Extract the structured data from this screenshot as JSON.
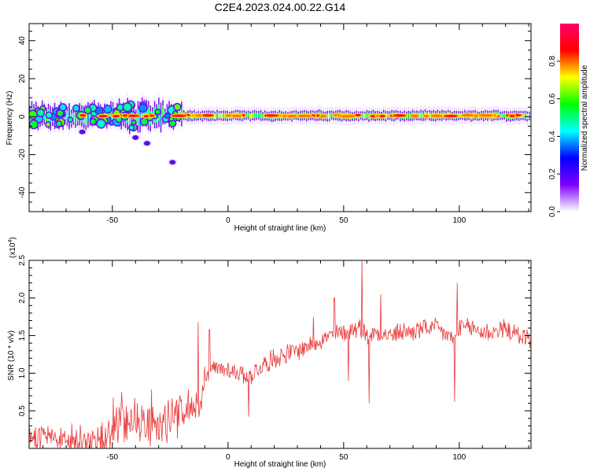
{
  "title": "C2E4.2023.024.00.22.G14",
  "colors": {
    "snr_line": "#e83a3a",
    "axis": "#000000"
  },
  "chart_data": [
    {
      "type": "heatmap",
      "xlabel": "Height of straight line (km)",
      "ylabel": "Frequency (Hz)",
      "xlim": [
        -86,
        131
      ],
      "ylim": [
        -50,
        49
      ],
      "xticks": [
        -50,
        0,
        50,
        100
      ],
      "yticks": [
        -40,
        -20,
        0,
        20,
        40
      ],
      "xtick_labels": [
        "-50",
        "0",
        "50",
        "100"
      ],
      "ytick_labels": [
        "-40",
        "-20",
        "0",
        "20",
        "40"
      ],
      "colorbar": {
        "label": "Normalized spectral amplitude",
        "range": [
          0,
          1
        ],
        "ticks": [
          0.0,
          0.2,
          0.4,
          0.6,
          0.8
        ],
        "tick_labels": [
          "0.0",
          "0.2",
          "0.4",
          "0.6",
          "0.8"
        ],
        "colormap": [
          "#ffffff",
          "#7f00ff",
          "#0000ff",
          "#00ffff",
          "#00ff00",
          "#ffff00",
          "#ff0000",
          "#ff0066"
        ]
      },
      "ridge_frequency_hz": 0.5,
      "detached_features": [
        {
          "x": -63,
          "y": -8
        },
        {
          "x": -40,
          "y": -11
        },
        {
          "x": -35,
          "y": -14
        },
        {
          "x": -24,
          "y": -24
        }
      ]
    },
    {
      "type": "line",
      "xlabel": "Height of straight line (km)",
      "ylabel": "SNR (10 * v/v)",
      "yscale_label": "(x10",
      "yscale_exponent": "4",
      "y_multiplier": 10000,
      "xlim": [
        -86,
        131
      ],
      "ylim": [
        0,
        2.5
      ],
      "xticks": [
        -50,
        0,
        50,
        100
      ],
      "yticks": [
        0.5,
        1.0,
        1.5,
        2.0,
        2.5
      ],
      "xtick_labels": [
        "-50",
        "0",
        "50",
        "100"
      ],
      "ytick_labels": [
        "0.5",
        "1.0",
        "1.5",
        "2.0",
        "2.5"
      ],
      "series": [
        {
          "x": [
            -86,
            -80,
            -75,
            -70,
            -65,
            -60,
            -55,
            -50,
            -45,
            -40,
            -35,
            -30,
            -25,
            -20,
            -15,
            -12,
            -10,
            -5,
            0,
            5,
            10,
            15,
            20,
            25,
            30,
            35,
            40,
            45,
            50,
            55,
            58,
            60,
            65,
            70,
            75,
            80,
            85,
            90,
            95,
            98,
            100,
            105,
            110,
            115,
            120,
            125,
            131
          ],
          "y": [
            0.18,
            0.15,
            0.12,
            0.1,
            0.08,
            0.06,
            0.05,
            0.22,
            0.38,
            0.42,
            0.32,
            0.3,
            0.4,
            0.45,
            0.55,
            0.52,
            1.0,
            1.05,
            1.05,
            1.0,
            0.98,
            1.1,
            1.2,
            1.25,
            1.3,
            1.38,
            1.45,
            1.5,
            1.55,
            1.6,
            1.6,
            1.5,
            1.55,
            1.5,
            1.55,
            1.55,
            1.6,
            1.6,
            1.5,
            1.45,
            1.6,
            1.6,
            1.55,
            1.55,
            1.6,
            1.5,
            1.45
          ]
        }
      ],
      "annotations": [
        {
          "x": -13,
          "y": 1.68
        },
        {
          "x": -8,
          "y": 1.58
        },
        {
          "x": 9,
          "y": 0.42
        },
        {
          "x": 37,
          "y": 1.75
        },
        {
          "x": 46,
          "y": 2.0
        },
        {
          "x": 52,
          "y": 0.9
        },
        {
          "x": 58,
          "y": 2.5
        },
        {
          "x": 61,
          "y": 0.6
        },
        {
          "x": 66,
          "y": 2.05
        },
        {
          "x": 98,
          "y": 0.62
        },
        {
          "x": 99,
          "y": 2.2
        }
      ]
    }
  ]
}
